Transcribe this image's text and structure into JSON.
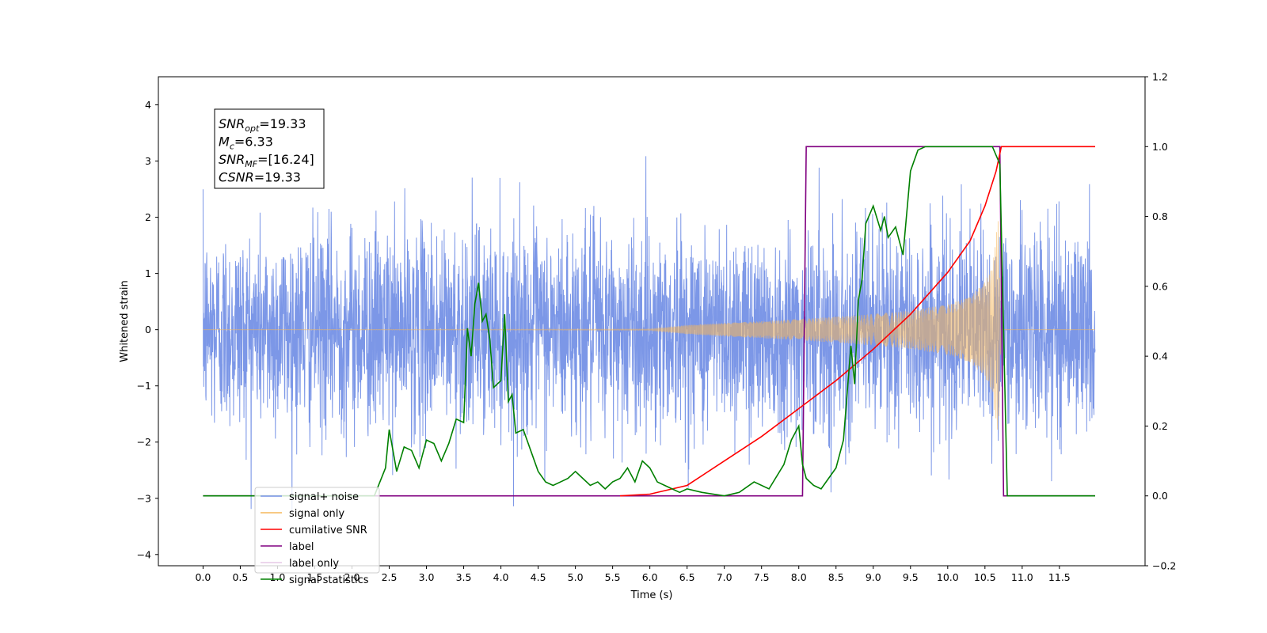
{
  "chart_data": {
    "type": "line",
    "xlabel": "Time (s)",
    "ylabel_left": "Whitened strain",
    "ylabel_right": "",
    "xlim": [
      -0.6,
      12.65
    ],
    "ylim_left": [
      -4.2,
      4.5
    ],
    "ylim_right": [
      -0.2,
      1.2
    ],
    "x_ticks": [
      "0.0",
      "0.5",
      "1.0",
      "1.5",
      "2.0",
      "2.5",
      "3.0",
      "3.5",
      "4.0",
      "4.5",
      "5.0",
      "5.5",
      "6.0",
      "6.5",
      "7.0",
      "7.5",
      "8.0",
      "8.5",
      "9.0",
      "9.5",
      "10.0",
      "10.5",
      "11.0",
      "11.5"
    ],
    "y_ticks_left": [
      "4",
      "3",
      "2",
      "1",
      "0",
      "−1",
      "−2",
      "−3",
      "−4"
    ],
    "y_ticks_right": [
      "1.2",
      "1.0",
      "0.8",
      "0.6",
      "0.4",
      "0.2",
      "0.0",
      "−0.2"
    ],
    "grid": false,
    "legend_position": "lower-left",
    "series": [
      {
        "name": "signal+ noise",
        "axis": "left",
        "color": "#7591e6",
        "desc": "whitened noisy strain, amplitude within about ±3"
      },
      {
        "name": "signal only",
        "axis": "left",
        "color": "#f5b75a",
        "desc": "chirp envelope",
        "x": [
          0.0,
          6.0,
          6.5,
          7.0,
          7.5,
          8.0,
          8.5,
          9.0,
          9.5,
          10.0,
          10.3,
          10.5,
          10.6,
          10.68,
          10.72,
          11.98
        ],
        "envelope": [
          0.0,
          0.01,
          0.08,
          0.12,
          0.15,
          0.19,
          0.23,
          0.28,
          0.34,
          0.45,
          0.58,
          0.85,
          1.15,
          2.0,
          0.0,
          0.0
        ]
      },
      {
        "name": "cumilative SNR",
        "axis": "right",
        "color": "#ff0000",
        "x": [
          5.6,
          6.0,
          6.5,
          7.0,
          7.5,
          8.0,
          8.5,
          9.0,
          9.5,
          10.0,
          10.3,
          10.5,
          10.65,
          10.72,
          11.98
        ],
        "values": [
          0.0,
          0.005,
          0.03,
          0.1,
          0.17,
          0.25,
          0.33,
          0.42,
          0.52,
          0.64,
          0.73,
          0.83,
          0.93,
          1.0,
          1.0
        ]
      },
      {
        "name": "label",
        "axis": "right",
        "color": "#800080",
        "x": [
          0.0,
          8.05,
          8.1,
          10.7,
          10.75,
          11.98
        ],
        "values": [
          0.0,
          0.0,
          1.0,
          1.0,
          0.0,
          0.0
        ]
      },
      {
        "name": "label only",
        "axis": "right",
        "color": "#e6c8e6",
        "x": [],
        "values": []
      },
      {
        "name": "signal statistics",
        "axis": "right",
        "color": "#008000",
        "x": [
          0.0,
          2.3,
          2.45,
          2.5,
          2.6,
          2.7,
          2.8,
          2.9,
          3.0,
          3.1,
          3.2,
          3.3,
          3.4,
          3.5,
          3.55,
          3.6,
          3.65,
          3.7,
          3.75,
          3.8,
          3.85,
          3.9,
          4.0,
          4.05,
          4.1,
          4.15,
          4.2,
          4.3,
          4.4,
          4.5,
          4.6,
          4.7,
          4.8,
          4.9,
          5.0,
          5.1,
          5.2,
          5.3,
          5.4,
          5.5,
          5.6,
          5.7,
          5.8,
          5.9,
          6.0,
          6.1,
          6.2,
          6.3,
          6.4,
          6.5,
          6.7,
          7.0,
          7.2,
          7.4,
          7.6,
          7.8,
          7.9,
          8.0,
          8.05,
          8.1,
          8.2,
          8.3,
          8.4,
          8.5,
          8.6,
          8.7,
          8.75,
          8.8,
          8.85,
          8.9,
          9.0,
          9.1,
          9.15,
          9.2,
          9.3,
          9.4,
          9.5,
          9.6,
          9.7,
          9.8,
          10.0,
          10.3,
          10.6,
          10.7,
          10.8,
          11.98
        ],
        "values": [
          0.0,
          0.0,
          0.08,
          0.19,
          0.07,
          0.14,
          0.13,
          0.08,
          0.16,
          0.15,
          0.1,
          0.15,
          0.22,
          0.21,
          0.48,
          0.4,
          0.55,
          0.61,
          0.5,
          0.52,
          0.45,
          0.31,
          0.33,
          0.52,
          0.27,
          0.29,
          0.18,
          0.19,
          0.13,
          0.07,
          0.04,
          0.03,
          0.04,
          0.05,
          0.07,
          0.05,
          0.03,
          0.04,
          0.02,
          0.04,
          0.05,
          0.08,
          0.04,
          0.1,
          0.08,
          0.04,
          0.03,
          0.02,
          0.01,
          0.02,
          0.01,
          0.0,
          0.01,
          0.04,
          0.02,
          0.09,
          0.16,
          0.2,
          0.09,
          0.05,
          0.03,
          0.02,
          0.05,
          0.08,
          0.16,
          0.43,
          0.32,
          0.56,
          0.62,
          0.78,
          0.83,
          0.76,
          0.8,
          0.74,
          0.77,
          0.69,
          0.93,
          0.99,
          1.0,
          1.0,
          1.0,
          1.0,
          1.0,
          0.95,
          0.0,
          0.0
        ]
      }
    ],
    "annotation_lines": [
      {
        "main": "SNR",
        "sub": "opt",
        "rest": "=19.33"
      },
      {
        "main": "M",
        "sub": "c",
        "rest": "=6.33"
      },
      {
        "main": "SNR",
        "sub": "MF",
        "rest": "=[16.24]"
      },
      {
        "main": "CSNR",
        "sub": "",
        "rest": "=19.33"
      }
    ]
  }
}
